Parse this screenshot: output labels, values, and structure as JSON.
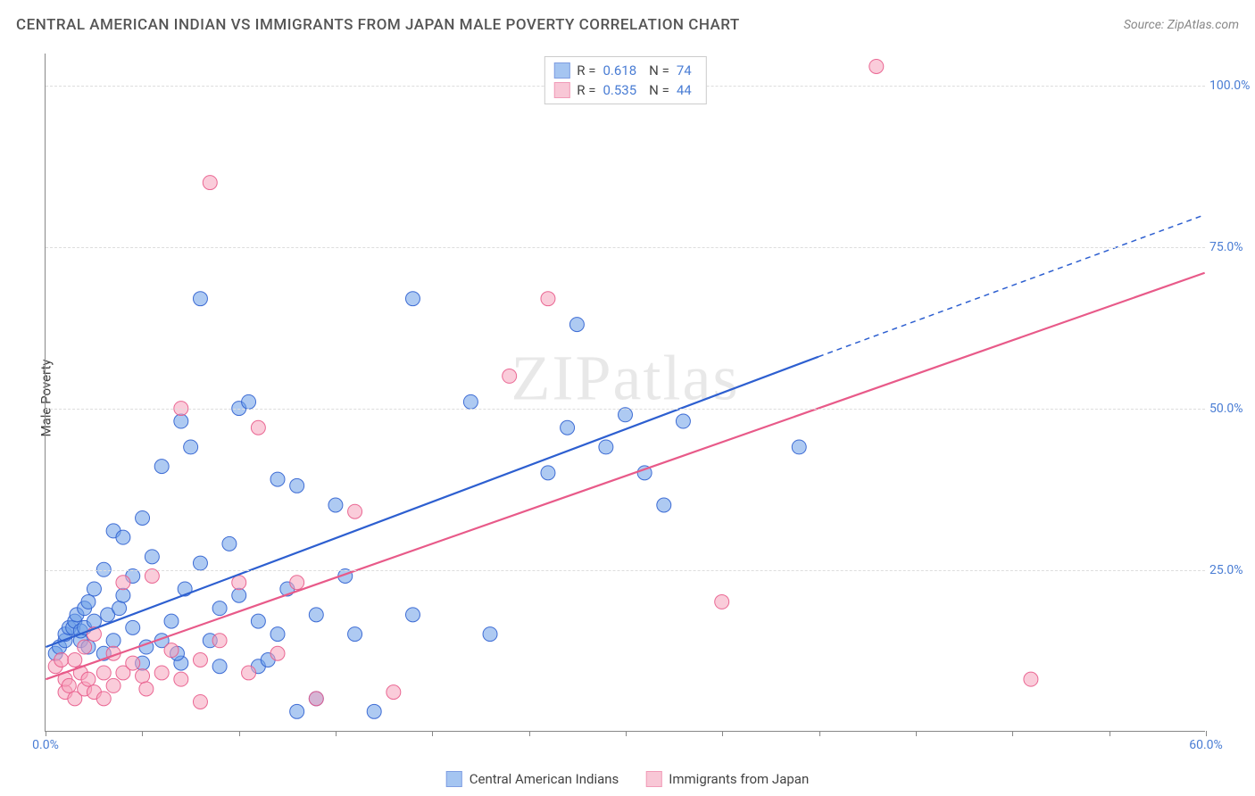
{
  "title": "CENTRAL AMERICAN INDIAN VS IMMIGRANTS FROM JAPAN MALE POVERTY CORRELATION CHART",
  "source_label": "Source: ",
  "source_name": "ZipAtlas.com",
  "y_axis_label": "Male Poverty",
  "watermark": "ZIPatlas",
  "chart": {
    "type": "scatter",
    "xlim": [
      0,
      60
    ],
    "ylim": [
      0,
      105
    ],
    "y_ticks": [
      25,
      50,
      75,
      100
    ],
    "y_tick_labels": [
      "25.0%",
      "50.0%",
      "75.0%",
      "100.0%"
    ],
    "x_tick_major": [
      0,
      60
    ],
    "x_tick_major_labels": [
      "0.0%",
      "60.0%"
    ],
    "x_tick_minor_step": 5,
    "background_color": "#ffffff",
    "grid_color": "#dddddd",
    "axis_color": "#888888",
    "tick_label_color": "#4a7dd4",
    "marker_radius": 8,
    "marker_opacity": 0.55,
    "marker_stroke_opacity": 0.9,
    "line_width": 2.2
  },
  "series": [
    {
      "name": "Central American Indians",
      "color": "#6b9fe8",
      "color_dark": "#2d5fd0",
      "r_label": "R =",
      "r_value": "0.618",
      "n_label": "N =",
      "n_value": "74",
      "regression": {
        "x1": 0,
        "y1": 13,
        "x2": 40,
        "y2": 58,
        "x2_dash": 60,
        "y2_dash": 80
      },
      "points": [
        [
          0.5,
          12
        ],
        [
          0.7,
          13
        ],
        [
          1,
          14
        ],
        [
          1,
          15
        ],
        [
          1.2,
          16
        ],
        [
          1.4,
          16
        ],
        [
          1.5,
          17
        ],
        [
          1.6,
          18
        ],
        [
          1.8,
          14
        ],
        [
          1.8,
          15.5
        ],
        [
          2,
          19
        ],
        [
          2,
          16
        ],
        [
          2.2,
          20
        ],
        [
          2.2,
          13
        ],
        [
          2.5,
          22
        ],
        [
          2.5,
          17
        ],
        [
          3,
          25
        ],
        [
          3,
          12
        ],
        [
          3.2,
          18
        ],
        [
          3.5,
          31
        ],
        [
          3.5,
          14
        ],
        [
          3.8,
          19
        ],
        [
          4,
          21
        ],
        [
          4,
          30
        ],
        [
          4.5,
          16
        ],
        [
          4.5,
          24
        ],
        [
          5,
          33
        ],
        [
          5,
          10.5
        ],
        [
          5.2,
          13
        ],
        [
          5.5,
          27
        ],
        [
          6,
          41
        ],
        [
          6,
          14
        ],
        [
          6.5,
          17
        ],
        [
          7,
          48
        ],
        [
          7,
          10.5
        ],
        [
          7.2,
          22
        ],
        [
          7.5,
          44
        ],
        [
          8,
          67
        ],
        [
          8,
          26
        ],
        [
          8.5,
          14
        ],
        [
          9,
          19
        ],
        [
          9,
          10
        ],
        [
          9.5,
          29
        ],
        [
          10,
          50
        ],
        [
          10,
          21
        ],
        [
          10.5,
          51
        ],
        [
          11,
          17
        ],
        [
          11,
          10
        ],
        [
          12,
          39
        ],
        [
          12,
          15
        ],
        [
          12.5,
          22
        ],
        [
          13,
          38
        ],
        [
          13,
          3
        ],
        [
          14,
          5
        ],
        [
          14,
          18
        ],
        [
          15,
          35
        ],
        [
          15.5,
          24
        ],
        [
          16,
          15
        ],
        [
          17,
          3
        ],
        [
          19,
          67
        ],
        [
          19,
          18
        ],
        [
          22,
          51
        ],
        [
          23,
          15
        ],
        [
          26,
          40
        ],
        [
          27,
          47
        ],
        [
          27.5,
          63
        ],
        [
          29,
          44
        ],
        [
          30,
          49
        ],
        [
          31,
          40
        ],
        [
          32,
          35
        ],
        [
          33,
          48
        ],
        [
          39,
          44
        ],
        [
          11.5,
          11
        ],
        [
          6.8,
          12
        ]
      ]
    },
    {
      "name": "Immigrants from Japan",
      "color": "#f5a3bb",
      "color_dark": "#e85a89",
      "r_label": "R =",
      "r_value": "0.535",
      "n_label": "N =",
      "n_value": "44",
      "regression": {
        "x1": 0,
        "y1": 8,
        "x2": 60,
        "y2": 71,
        "dash": false
      },
      "points": [
        [
          0.5,
          10
        ],
        [
          0.8,
          11
        ],
        [
          1,
          6
        ],
        [
          1,
          8
        ],
        [
          1.2,
          7
        ],
        [
          1.5,
          11
        ],
        [
          1.5,
          5
        ],
        [
          1.8,
          9
        ],
        [
          2,
          13
        ],
        [
          2,
          6.5
        ],
        [
          2.2,
          8
        ],
        [
          2.5,
          15
        ],
        [
          2.5,
          6
        ],
        [
          3,
          9
        ],
        [
          3,
          5
        ],
        [
          3.5,
          12
        ],
        [
          3.5,
          7
        ],
        [
          4,
          23
        ],
        [
          4,
          9
        ],
        [
          4.5,
          10.5
        ],
        [
          5,
          8.5
        ],
        [
          5.2,
          6.5
        ],
        [
          5.5,
          24
        ],
        [
          6,
          9
        ],
        [
          6.5,
          12.5
        ],
        [
          7,
          50
        ],
        [
          7,
          8
        ],
        [
          8,
          4.5
        ],
        [
          8.5,
          85
        ],
        [
          9,
          14
        ],
        [
          10,
          23
        ],
        [
          10.5,
          9
        ],
        [
          11,
          47
        ],
        [
          12,
          12
        ],
        [
          13,
          23
        ],
        [
          14,
          5
        ],
        [
          16,
          34
        ],
        [
          18,
          6
        ],
        [
          24,
          55
        ],
        [
          26,
          67
        ],
        [
          35,
          20
        ],
        [
          43,
          103
        ],
        [
          51,
          8
        ],
        [
          8,
          11
        ]
      ]
    }
  ],
  "legend_bottom": [
    {
      "label": "Central American Indians",
      "series": 0
    },
    {
      "label": "Immigrants from Japan",
      "series": 1
    }
  ]
}
